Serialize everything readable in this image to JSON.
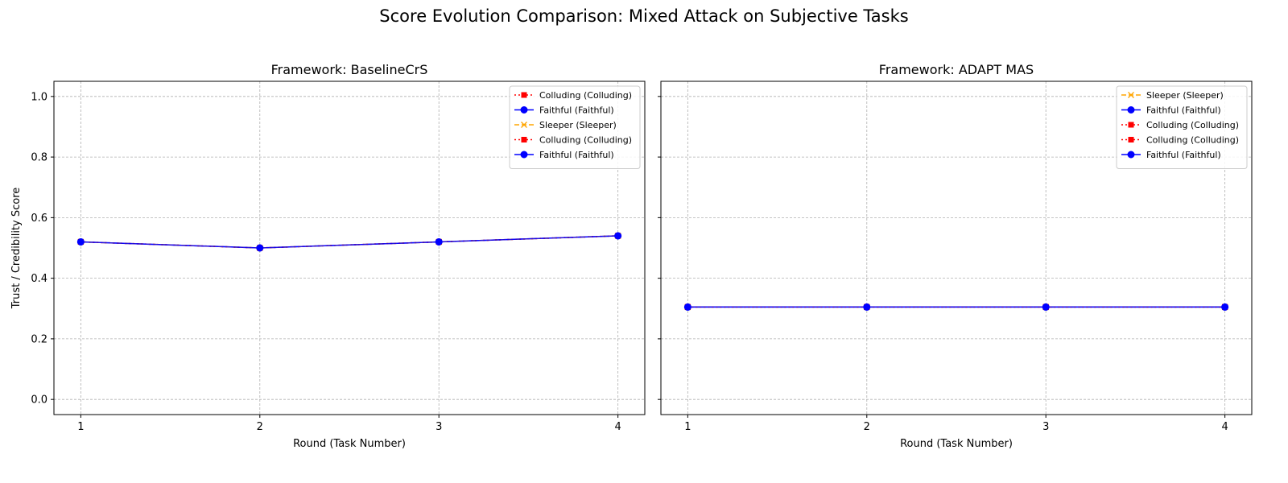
{
  "figure": {
    "suptitle": "Score Evolution Comparison: Mixed Attack on Subjective Tasks"
  },
  "chart_data": [
    {
      "type": "line",
      "title": "Framework: BaselineCrS",
      "xlabel": "Round (Task Number)",
      "ylabel": "Trust / Credibility Score",
      "x": [
        1,
        2,
        3,
        4
      ],
      "xticks": [
        "1",
        "2",
        "3",
        "4"
      ],
      "xlim": [
        0.85,
        4.15
      ],
      "ylim": [
        -0.05,
        1.05
      ],
      "yticks": [
        "0.0",
        "0.2",
        "0.4",
        "0.6",
        "0.8",
        "1.0"
      ],
      "grid": true,
      "legend_position": "top-right",
      "series": [
        {
          "name": "Colluding (Colluding)",
          "color": "#ff0000",
          "style": "dotted",
          "marker": "square",
          "values": [
            0.52,
            0.5,
            0.52,
            0.54
          ]
        },
        {
          "name": "Faithful (Faithful)",
          "color": "#0000ff",
          "style": "solid",
          "marker": "circle",
          "values": [
            0.52,
            0.5,
            0.52,
            0.54
          ]
        },
        {
          "name": "Sleeper (Sleeper)",
          "color": "#ffa500",
          "style": "dashed",
          "marker": "x",
          "values": [
            0.52,
            0.5,
            0.52,
            0.54
          ]
        },
        {
          "name": "Colluding (Colluding)",
          "color": "#ff0000",
          "style": "dotted",
          "marker": "square",
          "values": [
            0.52,
            0.5,
            0.52,
            0.54
          ]
        },
        {
          "name": "Faithful (Faithful)",
          "color": "#0000ff",
          "style": "solid",
          "marker": "circle",
          "values": [
            0.52,
            0.5,
            0.52,
            0.54
          ]
        }
      ]
    },
    {
      "type": "line",
      "title": "Framework: ADAPT MAS",
      "xlabel": "Round (Task Number)",
      "ylabel": "",
      "x": [
        1,
        2,
        3,
        4
      ],
      "xticks": [
        "1",
        "2",
        "3",
        "4"
      ],
      "xlim": [
        0.85,
        4.15
      ],
      "ylim": [
        -0.05,
        1.05
      ],
      "yticks": [
        "0.0",
        "0.2",
        "0.4",
        "0.6",
        "0.8",
        "1.0"
      ],
      "grid": true,
      "legend_position": "top-right",
      "series": [
        {
          "name": "Sleeper (Sleeper)",
          "color": "#ffa500",
          "style": "dashed",
          "marker": "x",
          "values": [
            0.305,
            0.305,
            0.305,
            0.305
          ]
        },
        {
          "name": "Faithful (Faithful)",
          "color": "#0000ff",
          "style": "solid",
          "marker": "circle",
          "values": [
            0.305,
            0.305,
            0.305,
            0.305
          ]
        },
        {
          "name": "Colluding (Colluding)",
          "color": "#ff0000",
          "style": "dotted",
          "marker": "square",
          "values": [
            0.305,
            0.305,
            0.305,
            0.305
          ]
        },
        {
          "name": "Colluding (Colluding)",
          "color": "#ff0000",
          "style": "dotted",
          "marker": "square",
          "values": [
            0.305,
            0.305,
            0.305,
            0.305
          ]
        },
        {
          "name": "Faithful (Faithful)",
          "color": "#0000ff",
          "style": "solid",
          "marker": "circle",
          "values": [
            0.305,
            0.305,
            0.305,
            0.305
          ]
        }
      ]
    }
  ]
}
